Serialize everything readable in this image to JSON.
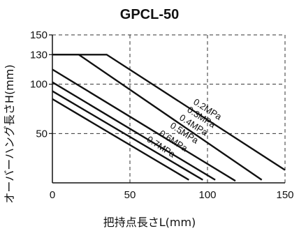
{
  "chart_data": {
    "type": "line",
    "title": "GPCL-50",
    "xlabel": "把持点長さL(mm)",
    "ylabel": "オーバーハング長さH(mm)",
    "xlim": [
      0,
      150
    ],
    "ylim": [
      0,
      150
    ],
    "xticks": [
      "0",
      "50",
      "100",
      "150"
    ],
    "yticks": [
      "50",
      "100",
      "130",
      "150"
    ],
    "grid": "dashed",
    "series": [
      {
        "name": "0.2MPa",
        "x": [
          0,
          35,
          150
        ],
        "y": [
          130,
          130,
          13
        ]
      },
      {
        "name": "0.3MPa",
        "x": [
          0,
          17,
          135
        ],
        "y": [
          130,
          130,
          3
        ]
      },
      {
        "name": "0.4MPa",
        "x": [
          0,
          118
        ],
        "y": [
          115,
          2
        ]
      },
      {
        "name": "0.5MPa",
        "x": [
          0,
          105
        ],
        "y": [
          102,
          3
        ]
      },
      {
        "name": "0.6MPa",
        "x": [
          0,
          97
        ],
        "y": [
          93,
          3
        ]
      },
      {
        "name": "0.7MPa",
        "x": [
          0,
          88
        ],
        "y": [
          85,
          3
        ]
      }
    ],
    "labels": [
      {
        "text": "0.2MPa",
        "x": 99,
        "y": 72
      },
      {
        "text": "0.3MPa",
        "x": 95,
        "y": 64
      },
      {
        "text": "0.4MPa",
        "x": 90,
        "y": 56
      },
      {
        "text": "0.5MPa",
        "x": 84,
        "y": 48
      },
      {
        "text": "0.6MPa",
        "x": 77,
        "y": 40
      },
      {
        "text": "0.7MPa",
        "x": 69,
        "y": 34
      }
    ]
  }
}
